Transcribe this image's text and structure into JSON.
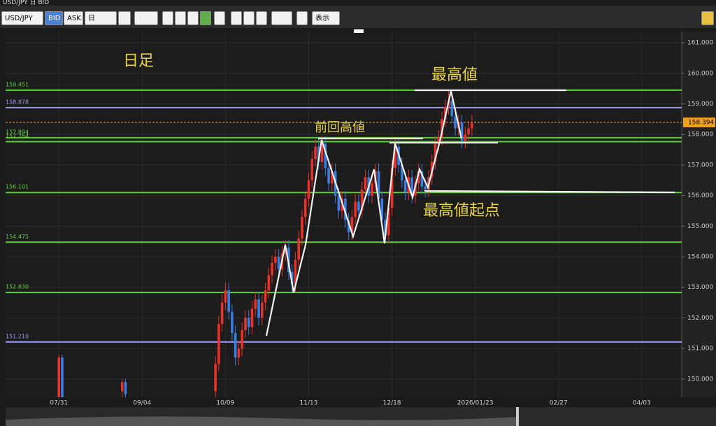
{
  "window": {
    "title": "USD/JPY 日 BID"
  },
  "toolbar": {
    "symbol": "USD/JPY",
    "bid": "BID",
    "ask": "ASK",
    "period": "日",
    "view": "表示"
  },
  "chart_data": {
    "type": "candlestick",
    "annotations": {
      "period": "日足",
      "high": "最高値",
      "prev_high": "前回高値",
      "high_origin": "最高値起点"
    },
    "up_color": "#e8322a",
    "down_color": "#3b7de0",
    "ylim": [
      149.4,
      161.37
    ],
    "xlim": [
      -16,
      187
    ],
    "yticks": [
      {
        "value": 150,
        "label": "150.000"
      },
      {
        "value": 151,
        "label": "151.000"
      },
      {
        "value": 152,
        "label": "152.000"
      },
      {
        "value": 153,
        "label": "153.000"
      },
      {
        "value": 154,
        "label": "154.000"
      },
      {
        "value": 155,
        "label": "155.000"
      },
      {
        "value": 156,
        "label": "156.000"
      },
      {
        "value": 157,
        "label": "157.000"
      },
      {
        "value": 158,
        "label": "158.000"
      },
      {
        "value": 159,
        "label": "159.000"
      },
      {
        "value": 160,
        "label": "160.000"
      },
      {
        "value": 161,
        "label": "161.000"
      }
    ],
    "xticks": [
      {
        "value": 0,
        "label": "07/31"
      },
      {
        "value": 25,
        "label": "09/04"
      },
      {
        "value": 50,
        "label": "10/09"
      },
      {
        "value": 75,
        "label": "11/13"
      },
      {
        "value": 100,
        "label": "12/18"
      },
      {
        "value": 125,
        "label": "2026/01/23"
      },
      {
        "value": 150,
        "label": "02/27"
      },
      {
        "value": 175,
        "label": "04/03"
      }
    ],
    "levels": [
      {
        "value": 159.451,
        "color": "#5fd13a"
      },
      {
        "value": 158.878,
        "color": "#9b97e8"
      },
      {
        "value": 157.894,
        "color": "#5fd13a"
      },
      {
        "value": 157.764,
        "color": "#5fd13a"
      },
      {
        "value": 156.101,
        "color": "#5fd13a"
      },
      {
        "value": 154.475,
        "color": "#5fd13a"
      },
      {
        "value": 152.83,
        "label": "152.830",
        "color": "#5fd13a"
      },
      {
        "value": 151.21,
        "label": "151.210",
        "color": "#9b97e8"
      }
    ],
    "current": {
      "value": 158.394,
      "color": "#f0a020"
    },
    "x": [
      0,
      1,
      19,
      20,
      47,
      48,
      49,
      50,
      51,
      52,
      53,
      54,
      55,
      56,
      57,
      58,
      59,
      60,
      61,
      62,
      63,
      64,
      65,
      66,
      67,
      68,
      69,
      70,
      71,
      72,
      73,
      74,
      75,
      76,
      77,
      78,
      79,
      80,
      81,
      82,
      83,
      84,
      85,
      86,
      87,
      88,
      89,
      90,
      91,
      92,
      93,
      94,
      95,
      96,
      97,
      98,
      99,
      100,
      101,
      102,
      103,
      104,
      105,
      106,
      107,
      108,
      109,
      110,
      111,
      112,
      113,
      114,
      115,
      116,
      117,
      118,
      119,
      120,
      121,
      122,
      123,
      124
    ],
    "open": [
      149.0,
      150.7,
      149.6,
      149.9,
      149.6,
      150.5,
      151.8,
      152.5,
      152.9,
      152.2,
      151.5,
      150.7,
      151.0,
      151.6,
      152.0,
      151.7,
      152.3,
      152.6,
      152.0,
      152.5,
      152.9,
      153.4,
      153.8,
      154.0,
      153.6,
      154.1,
      154.3,
      153.5,
      153.1,
      153.9,
      154.6,
      155.3,
      155.9,
      156.5,
      157.2,
      157.6,
      157.1,
      157.7,
      156.9,
      156.4,
      156.8,
      156.0,
      155.5,
      155.9,
      155.2,
      154.8,
      155.3,
      155.8,
      155.5,
      156.2,
      156.6,
      156.0,
      156.4,
      156.8,
      155.9,
      155.2,
      154.7,
      155.6,
      156.9,
      157.6,
      157.0,
      156.5,
      156.1,
      156.6,
      156.0,
      156.4,
      156.8,
      156.3,
      156.2,
      156.6,
      157.1,
      157.7,
      157.9,
      158.5,
      158.9,
      159.1,
      158.6,
      158.2,
      158.4,
      157.8,
      158.0,
      158.2
    ],
    "high": [
      150.8,
      150.8,
      150.0,
      150.0,
      150.75,
      152.05,
      152.75,
      153.15,
      153.15,
      152.45,
      151.75,
      151.25,
      151.85,
      152.25,
      152.25,
      152.55,
      152.85,
      152.85,
      152.75,
      153.15,
      153.65,
      154.05,
      154.25,
      154.25,
      154.35,
      154.55,
      154.55,
      153.75,
      154.15,
      154.85,
      155.55,
      156.15,
      156.75,
      157.45,
      157.85,
      157.85,
      157.95,
      157.95,
      157.15,
      157.05,
      157.05,
      156.25,
      156.15,
      156.15,
      155.45,
      155.55,
      156.05,
      156.05,
      156.45,
      156.85,
      156.85,
      156.65,
      157.05,
      157.05,
      156.15,
      155.45,
      155.85,
      157.15,
      157.85,
      157.85,
      157.25,
      156.75,
      156.85,
      156.85,
      156.65,
      157.05,
      157.05,
      156.55,
      156.85,
      157.35,
      157.95,
      158.15,
      158.75,
      159.15,
      159.45,
      159.35,
      158.85,
      158.65,
      158.65,
      158.25,
      158.45,
      158.64
    ],
    "low": [
      148.5,
      148.0,
      149.3,
      149.4,
      149.35,
      150.25,
      151.55,
      152.25,
      151.95,
      151.25,
      150.45,
      150.45,
      150.75,
      151.35,
      151.45,
      151.45,
      152.05,
      151.75,
      151.75,
      152.25,
      152.65,
      153.15,
      153.55,
      153.35,
      153.35,
      153.85,
      153.25,
      152.85,
      152.85,
      153.65,
      154.35,
      155.05,
      155.65,
      156.25,
      156.95,
      156.85,
      156.85,
      156.65,
      156.15,
      156.15,
      155.75,
      155.25,
      155.25,
      154.95,
      154.55,
      154.55,
      155.05,
      155.25,
      155.25,
      155.95,
      155.75,
      155.75,
      156.15,
      155.65,
      154.95,
      154.45,
      154.45,
      155.35,
      156.65,
      156.75,
      156.25,
      155.85,
      155.85,
      155.75,
      155.75,
      156.15,
      156.05,
      155.95,
      155.95,
      156.35,
      156.85,
      157.45,
      157.65,
      158.25,
      158.65,
      158.35,
      157.95,
      157.95,
      157.55,
      157.55,
      157.75,
      157.95
    ],
    "close": [
      150.7,
      148.6,
      149.9,
      149.5,
      150.5,
      151.8,
      152.5,
      152.9,
      152.2,
      151.5,
      150.7,
      151.0,
      151.6,
      152.0,
      151.7,
      152.3,
      152.6,
      152.0,
      152.5,
      152.9,
      153.4,
      153.8,
      154.0,
      153.6,
      154.1,
      154.3,
      153.5,
      153.1,
      153.9,
      154.6,
      155.3,
      155.9,
      156.5,
      157.2,
      157.6,
      157.1,
      157.7,
      156.9,
      156.4,
      156.8,
      156.0,
      155.5,
      155.9,
      155.2,
      154.8,
      155.3,
      155.8,
      155.5,
      156.2,
      156.6,
      156.0,
      156.4,
      156.8,
      155.9,
      155.2,
      154.7,
      155.6,
      156.9,
      157.6,
      157.0,
      156.5,
      156.1,
      156.6,
      156.0,
      156.4,
      156.8,
      156.3,
      156.2,
      156.6,
      157.1,
      157.7,
      157.9,
      158.5,
      158.9,
      159.1,
      158.6,
      158.2,
      158.4,
      157.8,
      158.0,
      158.2,
      158.39
    ]
  }
}
